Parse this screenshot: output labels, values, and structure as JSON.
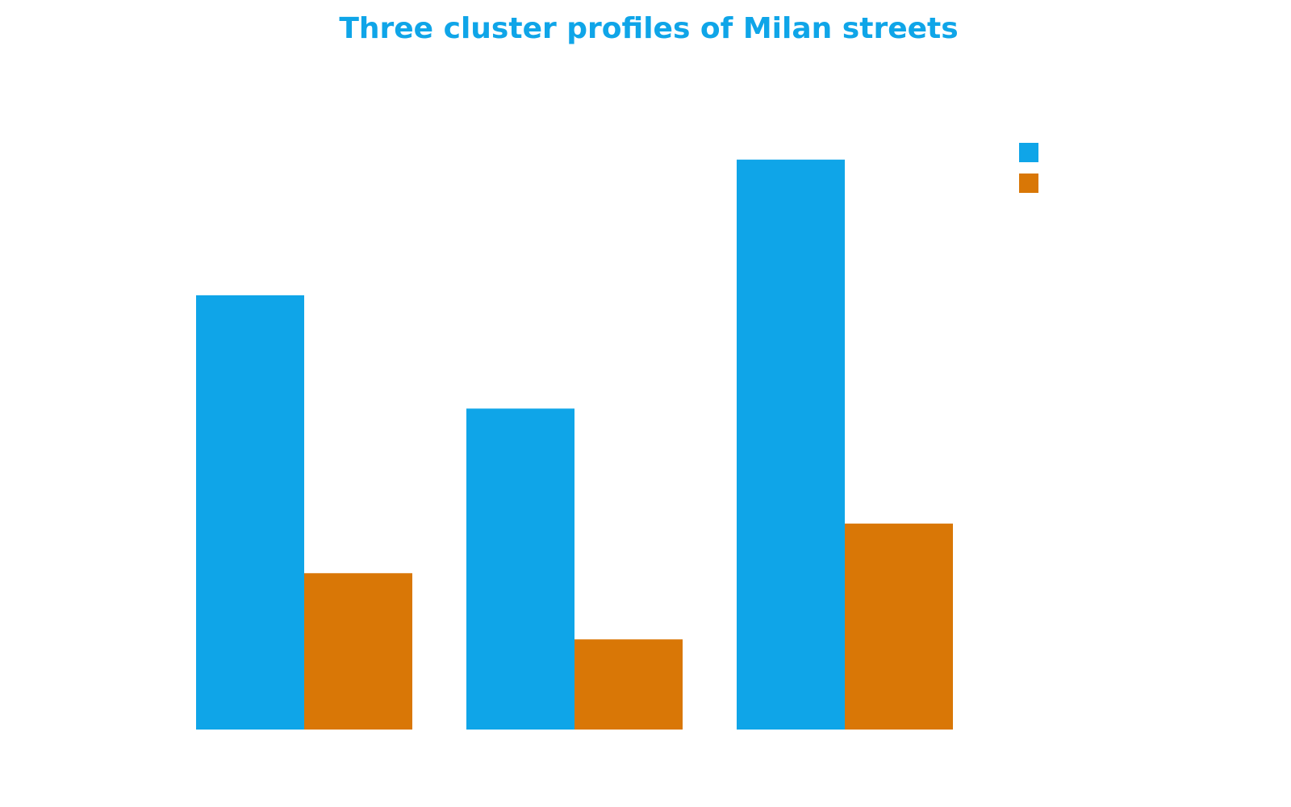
{
  "chart_data": {
    "type": "bar",
    "title": "Three cluster profiles of Milan streets",
    "categories": [
      null,
      null,
      null
    ],
    "series": [
      {
        "color": "#0fa5e8",
        "values": [
          525,
          388,
          689
        ]
      },
      {
        "color": "#d97706",
        "values": [
          189,
          109,
          249
        ]
      }
    ],
    "ylim": [
      0,
      800
    ],
    "legend": "upper right"
  }
}
